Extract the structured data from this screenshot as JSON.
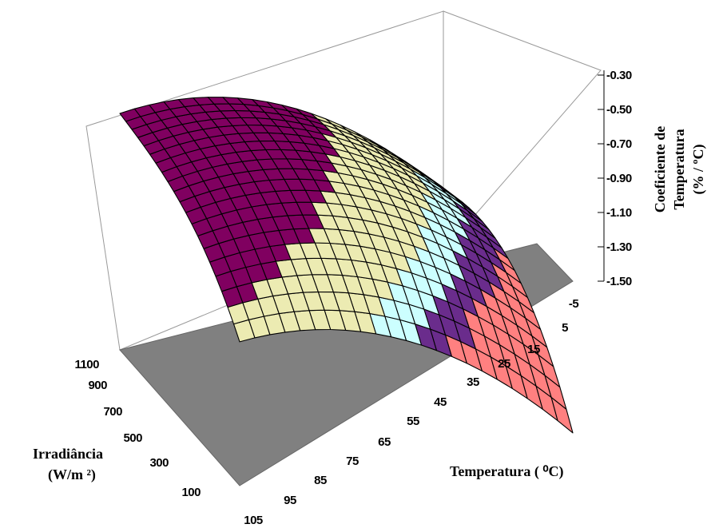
{
  "chart_data": {
    "type": "surface",
    "title": "",
    "zlabel_lines": [
      "Coeficiente de",
      "Temperatura",
      "(% / ºC)"
    ],
    "xlabel": "Temperatura ( ⁰C)",
    "ylabel_lines": [
      "Irradiância",
      "(W/m ²)"
    ],
    "x_ticks": [
      "-5",
      "5",
      "15",
      "25",
      "35",
      "45",
      "55",
      "65",
      "75",
      "85",
      "95",
      "105"
    ],
    "y_ticks": [
      "1100",
      "900",
      "700",
      "500",
      "300",
      "100"
    ],
    "z_ticks": [
      "-0.30",
      "-0.50",
      "-0.70",
      "-0.90",
      "-1.10",
      "-1.30",
      "-1.50"
    ],
    "zlim": [
      -1.5,
      -0.3
    ],
    "xlim": [
      -5,
      105
    ],
    "ylim": [
      100,
      1100
    ],
    "color_bands": [
      {
        "range": [
          -0.3,
          -0.1
        ],
        "color": "#9999ff"
      },
      {
        "range": [
          -0.5,
          -0.3
        ],
        "color": "#800060"
      },
      {
        "range": [
          -0.7,
          -0.5
        ],
        "color": "#800060"
      },
      {
        "range": [
          -0.9,
          -0.7
        ],
        "color": "#ecebb2"
      },
      {
        "range": [
          -1.1,
          -0.9
        ],
        "color": "#ecebb2"
      },
      {
        "range": [
          -1.3,
          -1.1
        ],
        "color": "#ccffff"
      },
      {
        "range": [
          -1.5,
          -1.3
        ],
        "color": "#6a2c8c"
      },
      {
        "range": [
          -1.7,
          -1.5
        ],
        "color": "#ff8080"
      }
    ],
    "floor_color": "#808080",
    "wall_color": "#ffffff",
    "grid": true
  }
}
